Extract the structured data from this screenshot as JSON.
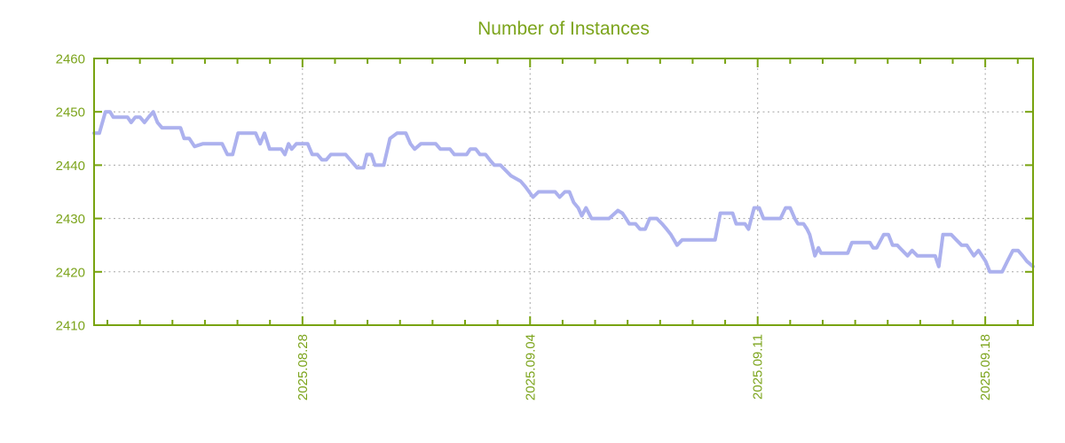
{
  "chart_data": {
    "type": "line",
    "title": "Number of Instances",
    "series_name": "instances",
    "colors": {
      "line": "#acb1ee",
      "axis": "#78a30f",
      "text": "#7ca41c",
      "grid": "#a6a6a6",
      "background": "#ffffff"
    },
    "legend": "none",
    "grid": "on",
    "x_axis": {
      "unit": "days relative to 2025.08.28",
      "range": [
        -6.41,
        22.47
      ],
      "minor_tick_interval": 1,
      "major_ticks": [
        {
          "pos": 0,
          "label": "2025.08.28"
        },
        {
          "pos": 7,
          "label": "2025.09.04"
        },
        {
          "pos": 14,
          "label": "2025.09.11"
        },
        {
          "pos": 21,
          "label": "2025.09.18"
        }
      ]
    },
    "y_axis": {
      "range": [
        2410,
        2460
      ],
      "tick_interval": 10,
      "tick_labels": [
        "2410",
        "2420",
        "2430",
        "2440",
        "2450",
        "2460"
      ]
    },
    "points": [
      [
        -6.41,
        2446
      ],
      [
        -6.25,
        2446
      ],
      [
        -6.06,
        2450
      ],
      [
        -5.92,
        2450
      ],
      [
        -5.82,
        2449
      ],
      [
        -5.38,
        2449
      ],
      [
        -5.27,
        2448
      ],
      [
        -5.14,
        2449
      ],
      [
        -5.0,
        2449
      ],
      [
        -4.86,
        2448
      ],
      [
        -4.73,
        2449
      ],
      [
        -4.59,
        2450
      ],
      [
        -4.46,
        2448
      ],
      [
        -4.32,
        2447
      ],
      [
        -3.75,
        2447
      ],
      [
        -3.64,
        2445
      ],
      [
        -3.48,
        2445
      ],
      [
        -3.32,
        2443.5
      ],
      [
        -3.07,
        2444
      ],
      [
        -2.47,
        2444
      ],
      [
        -2.31,
        2442
      ],
      [
        -2.15,
        2442
      ],
      [
        -1.98,
        2446
      ],
      [
        -1.44,
        2446
      ],
      [
        -1.3,
        2444
      ],
      [
        -1.17,
        2446
      ],
      [
        -1.01,
        2443
      ],
      [
        -0.65,
        2443
      ],
      [
        -0.54,
        2442
      ],
      [
        -0.43,
        2444
      ],
      [
        -0.33,
        2443
      ],
      [
        -0.19,
        2444
      ],
      [
        0.16,
        2444
      ],
      [
        0.3,
        2442
      ],
      [
        0.46,
        2442
      ],
      [
        0.6,
        2441
      ],
      [
        0.73,
        2441
      ],
      [
        0.87,
        2442
      ],
      [
        1.33,
        2442
      ],
      [
        1.47,
        2441
      ],
      [
        1.68,
        2439.5
      ],
      [
        1.88,
        2439.5
      ],
      [
        1.98,
        2442
      ],
      [
        2.12,
        2442
      ],
      [
        2.23,
        2440
      ],
      [
        2.5,
        2440
      ],
      [
        2.69,
        2445
      ],
      [
        2.91,
        2446
      ],
      [
        3.18,
        2446
      ],
      [
        3.32,
        2444
      ],
      [
        3.45,
        2443
      ],
      [
        3.64,
        2444
      ],
      [
        4.1,
        2444
      ],
      [
        4.24,
        2443
      ],
      [
        4.54,
        2443
      ],
      [
        4.67,
        2442
      ],
      [
        5.05,
        2442
      ],
      [
        5.16,
        2443
      ],
      [
        5.33,
        2443
      ],
      [
        5.46,
        2442
      ],
      [
        5.63,
        2442
      ],
      [
        5.76,
        2441
      ],
      [
        5.9,
        2440
      ],
      [
        6.09,
        2440
      ],
      [
        6.25,
        2439
      ],
      [
        6.41,
        2438
      ],
      [
        6.71,
        2437
      ],
      [
        6.85,
        2436
      ],
      [
        7.09,
        2434
      ],
      [
        7.26,
        2435
      ],
      [
        7.77,
        2435
      ],
      [
        7.91,
        2434
      ],
      [
        8.07,
        2435
      ],
      [
        8.21,
        2435
      ],
      [
        8.34,
        2433
      ],
      [
        8.48,
        2432
      ],
      [
        8.59,
        2430.5
      ],
      [
        8.72,
        2432
      ],
      [
        8.89,
        2430
      ],
      [
        9.43,
        2430
      ],
      [
        9.7,
        2431.5
      ],
      [
        9.84,
        2431
      ],
      [
        9.95,
        2430
      ],
      [
        10.05,
        2429
      ],
      [
        10.24,
        2429
      ],
      [
        10.38,
        2428
      ],
      [
        10.54,
        2428
      ],
      [
        10.68,
        2430
      ],
      [
        10.9,
        2430
      ],
      [
        11.06,
        2429
      ],
      [
        11.2,
        2428
      ],
      [
        11.33,
        2427
      ],
      [
        11.52,
        2425
      ],
      [
        11.68,
        2426
      ],
      [
        11.85,
        2426
      ],
      [
        12.69,
        2426
      ],
      [
        12.85,
        2431
      ],
      [
        13.23,
        2431
      ],
      [
        13.34,
        2429
      ],
      [
        13.61,
        2429
      ],
      [
        13.72,
        2428
      ],
      [
        13.89,
        2432
      ],
      [
        14.05,
        2432
      ],
      [
        14.18,
        2430
      ],
      [
        14.7,
        2430
      ],
      [
        14.86,
        2432
      ],
      [
        15.0,
        2432
      ],
      [
        15.14,
        2430
      ],
      [
        15.24,
        2429
      ],
      [
        15.41,
        2429
      ],
      [
        15.52,
        2428
      ],
      [
        15.6,
        2427
      ],
      [
        15.68,
        2425
      ],
      [
        15.76,
        2423
      ],
      [
        15.87,
        2424.5
      ],
      [
        15.95,
        2423.5
      ],
      [
        16.09,
        2423.5
      ],
      [
        16.77,
        2423.5
      ],
      [
        16.9,
        2425.5
      ],
      [
        17.45,
        2425.5
      ],
      [
        17.55,
        2424.5
      ],
      [
        17.66,
        2424.5
      ],
      [
        17.88,
        2427
      ],
      [
        18.02,
        2427
      ],
      [
        18.15,
        2425
      ],
      [
        18.29,
        2425
      ],
      [
        18.45,
        2424
      ],
      [
        18.61,
        2423
      ],
      [
        18.75,
        2424
      ],
      [
        18.91,
        2423
      ],
      [
        19.46,
        2423
      ],
      [
        19.57,
        2421
      ],
      [
        19.7,
        2427
      ],
      [
        19.95,
        2427
      ],
      [
        20.11,
        2426
      ],
      [
        20.27,
        2425
      ],
      [
        20.43,
        2425
      ],
      [
        20.54,
        2424
      ],
      [
        20.65,
        2423
      ],
      [
        20.79,
        2424
      ],
      [
        20.9,
        2423
      ],
      [
        21.01,
        2422
      ],
      [
        21.14,
        2420
      ],
      [
        21.52,
        2420
      ],
      [
        21.68,
        2422
      ],
      [
        21.85,
        2424
      ],
      [
        22.01,
        2424
      ],
      [
        22.15,
        2423
      ],
      [
        22.28,
        2422
      ],
      [
        22.47,
        2421
      ]
    ]
  }
}
